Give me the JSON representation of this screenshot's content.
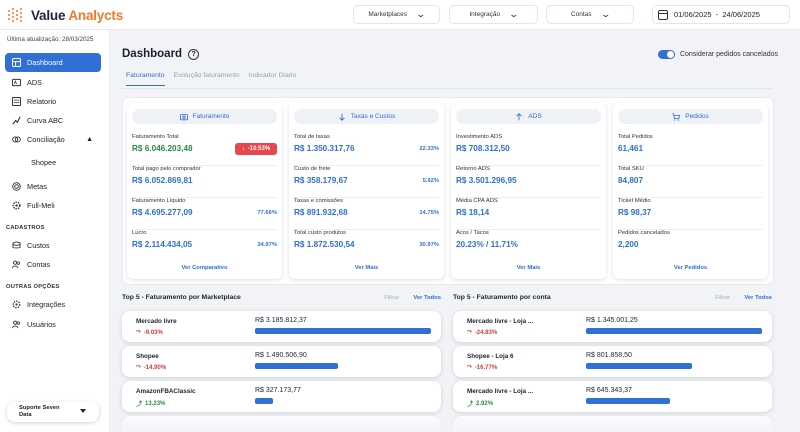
{
  "app": {
    "logo_main": "Value",
    "logo_accent": "Analycts"
  },
  "topbar": {
    "filters": [
      {
        "label": "Marketplaces"
      },
      {
        "label": "Integração"
      },
      {
        "label": "Contas"
      }
    ],
    "date_range": "01/06/2025  -  24/06/2025"
  },
  "sidebar": {
    "last_update": "Última atualização: 28/03/2025",
    "items": [
      {
        "label": "Dashboard",
        "icon": "dashboard-icon",
        "active": true
      },
      {
        "label": "ADS",
        "icon": "ads-icon"
      },
      {
        "label": "Relatorio",
        "icon": "report-icon"
      },
      {
        "label": "Curva ABC",
        "icon": "curve-icon"
      },
      {
        "label": "Conciliação",
        "icon": "reconcile-icon"
      },
      {
        "label": "Shopee",
        "icon": ""
      },
      {
        "label": "Metas",
        "icon": "target-icon"
      },
      {
        "label": "Full-Meli",
        "icon": "settings-icon"
      }
    ],
    "section_cadastros": "CADASTROS",
    "cadastros": [
      {
        "label": "Custos",
        "icon": "coins-icon"
      },
      {
        "label": "Contas",
        "icon": "users-icon"
      }
    ],
    "section_outras": "OUTRAS OPÇÕES",
    "outras": [
      {
        "label": "Integrações",
        "icon": "integrations-icon"
      },
      {
        "label": "Usuários",
        "icon": "users-icon"
      }
    ],
    "support_line1": "Suporte Seven",
    "support_line2": "Data"
  },
  "main": {
    "title": "Dashboard",
    "help": "?",
    "toggle_label": "Considerar pedidos cancelados",
    "toggle_on": true,
    "tabs": [
      {
        "label": "Faturamento",
        "active": true
      },
      {
        "label": "Evolução faturamento"
      },
      {
        "label": "Indicador Diario"
      }
    ]
  },
  "cards": [
    {
      "header": "Faturamento",
      "icon": "camera-icon",
      "metrics": [
        {
          "label": "Faturamento Total",
          "value": "R$ 6.046.203,48",
          "green": true,
          "badge": "-10.53%"
        },
        {
          "label": "Total pago pelo comprador",
          "value": "R$ 6.052.869,81"
        },
        {
          "label": "Faturamento Líquido",
          "value": "R$ 4.695.277,09",
          "pct": "77.66%"
        },
        {
          "label": "Lucro",
          "value": "R$ 2.114.434,05",
          "pct": "34.97%"
        }
      ],
      "link": "Ver Comparativo"
    },
    {
      "header": "Taxas e Custos",
      "icon": "arrow-down-icon",
      "metrics": [
        {
          "label": "Total de taxas",
          "value": "R$ 1.350.317,76",
          "pct": "22.33%"
        },
        {
          "label": "Custo de frete",
          "value": "R$ 358.179,67",
          "pct": "5.92%"
        },
        {
          "label": "Taxas e comissões",
          "value": "R$ 891.932,68",
          "pct": "14.75%"
        },
        {
          "label": "Total custo produtos",
          "value": "R$ 1.872.530,54",
          "pct": "30.97%"
        }
      ],
      "link": "Ver Mais"
    },
    {
      "header": "ADS",
      "icon": "arrow-up-icon",
      "metrics": [
        {
          "label": "Investimento ADS",
          "value": "R$ 708.312,50"
        },
        {
          "label": "Retorno ADS",
          "value": "R$ 3.501.296,95"
        },
        {
          "label": "Média CPA ADS",
          "value": "R$ 18,14"
        },
        {
          "label": "Acos / Tacos",
          "value": "20.23% / 11.71%"
        }
      ],
      "link": "Ver Mais"
    },
    {
      "header": "Pedidos",
      "icon": "cart-icon",
      "metrics": [
        {
          "label": "Total Pedidos",
          "value": "61,461"
        },
        {
          "label": "Total SKU",
          "value": "84,807"
        },
        {
          "label": "Ticket Médio",
          "value": "R$ 98,37"
        },
        {
          "label": "Pedidos cancelados",
          "value": "2,200"
        }
      ],
      "link": "Ver Pedidos"
    }
  ],
  "top5": [
    {
      "title": "Top 5 - Faturamento por Marketplace",
      "filter": "Filtrar",
      "see_all": "Ver Todos",
      "rows": [
        {
          "name": "Mercado livre",
          "pct": "-9.03%",
          "trend": "down",
          "amount": "R$ 3.185.812,37",
          "share": 1.0
        },
        {
          "name": "Shopee",
          "pct": "-14.90%",
          "trend": "down",
          "amount": "R$ 1.490.506,90",
          "share": 0.47
        },
        {
          "name": "AmazonFBAClassic",
          "pct": "13.23%",
          "trend": "up",
          "amount": "R$ 327.173,77",
          "share": 0.1
        }
      ]
    },
    {
      "title": "Top 5 - Faturamento por conta",
      "filter": "Filtrar",
      "see_all": "Ver Todos",
      "rows": [
        {
          "name": "Mercado livre - Loja ...",
          "pct": "-24.83%",
          "trend": "down",
          "amount": "R$ 1.345.001,25",
          "share": 1.0
        },
        {
          "name": "Shopee - Loja 6",
          "pct": "-16.77%",
          "trend": "down",
          "amount": "R$ 801.858,50",
          "share": 0.6
        },
        {
          "name": "Mercado livre - Loja ...",
          "pct": "2.92%",
          "trend": "up",
          "amount": "R$ 645.343,37",
          "share": 0.48
        }
      ]
    }
  ],
  "colors": {
    "accent": "#2f6fd6",
    "brand": "#f07a2b",
    "positive": "#2e8b3e",
    "negative": "#d83a3a"
  }
}
